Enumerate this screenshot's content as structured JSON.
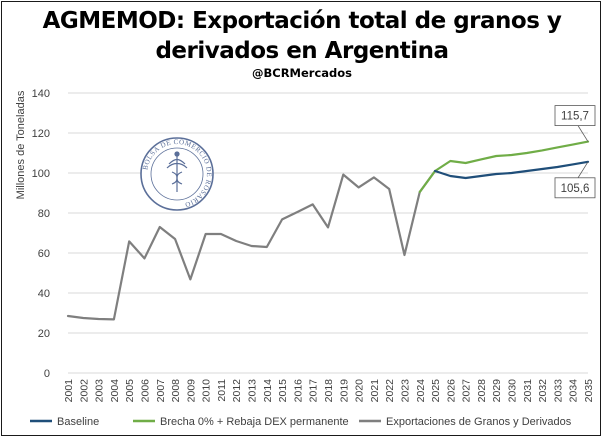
{
  "header": {
    "title_line1": "AGMEMOD: Exportación total de granos y",
    "title_line2": "derivados en Argentina",
    "handle": "@BCRMercados"
  },
  "logo": {
    "text": "BOLSA DE COMERCIO DE ROSARIO",
    "icon": "caduceus-seal"
  },
  "chart_data": {
    "type": "line",
    "ylabel": "Millones de Toneladas",
    "ylim": [
      0,
      140
    ],
    "yticks": [
      0,
      20,
      40,
      60,
      80,
      100,
      120,
      140
    ],
    "grid": true,
    "legend_position": "bottom",
    "x": [
      "2001",
      "2002",
      "2003",
      "2004",
      "2005",
      "2006",
      "2007",
      "2008",
      "2009",
      "2010",
      "2011",
      "2012",
      "2013",
      "2014",
      "2015",
      "2016",
      "2017",
      "2018",
      "2019",
      "2020",
      "2021",
      "2022",
      "2023",
      "2024",
      "2025",
      "2026",
      "2027",
      "2028",
      "2029",
      "2030",
      "2031",
      "2032",
      "2033",
      "2034",
      "2035"
    ],
    "series": [
      {
        "name": "Baseline",
        "color": "#1f4e79",
        "values": [
          null,
          null,
          null,
          null,
          null,
          null,
          null,
          null,
          null,
          null,
          null,
          null,
          null,
          null,
          null,
          null,
          null,
          null,
          null,
          null,
          null,
          null,
          null,
          null,
          101.0,
          98.5,
          97.5,
          98.5,
          99.5,
          100.0,
          101.0,
          102.0,
          103.0,
          104.3,
          105.6
        ]
      },
      {
        "name": "Brecha 0% + Rebaja DEX permanente",
        "color": "#70ad47",
        "values": [
          null,
          null,
          null,
          null,
          null,
          null,
          null,
          null,
          null,
          null,
          null,
          null,
          null,
          null,
          null,
          null,
          null,
          null,
          null,
          null,
          null,
          null,
          null,
          90.5,
          101.0,
          106.0,
          105.0,
          106.8,
          108.5,
          109.0,
          110.0,
          111.3,
          112.8,
          114.2,
          115.7
        ]
      },
      {
        "name": "Exportaciones de Granos y Derivados",
        "color": "#7f7f7f",
        "values": [
          28.5,
          27.5,
          27.0,
          26.8,
          65.8,
          57.3,
          73.0,
          67.0,
          46.8,
          69.5,
          69.5,
          66.0,
          63.5,
          63.0,
          76.8,
          80.5,
          84.3,
          72.8,
          99.2,
          92.8,
          97.8,
          92.0,
          59.0,
          90.5,
          101.0,
          null,
          null,
          null,
          null,
          null,
          null,
          null,
          null,
          null,
          null
        ]
      }
    ],
    "annotations": [
      {
        "label": "115,7",
        "series": "Brecha 0% + Rebaja DEX permanente",
        "x": "2035",
        "y": 115.7
      },
      {
        "label": "105,6",
        "series": "Baseline",
        "x": "2035",
        "y": 105.6
      }
    ]
  }
}
